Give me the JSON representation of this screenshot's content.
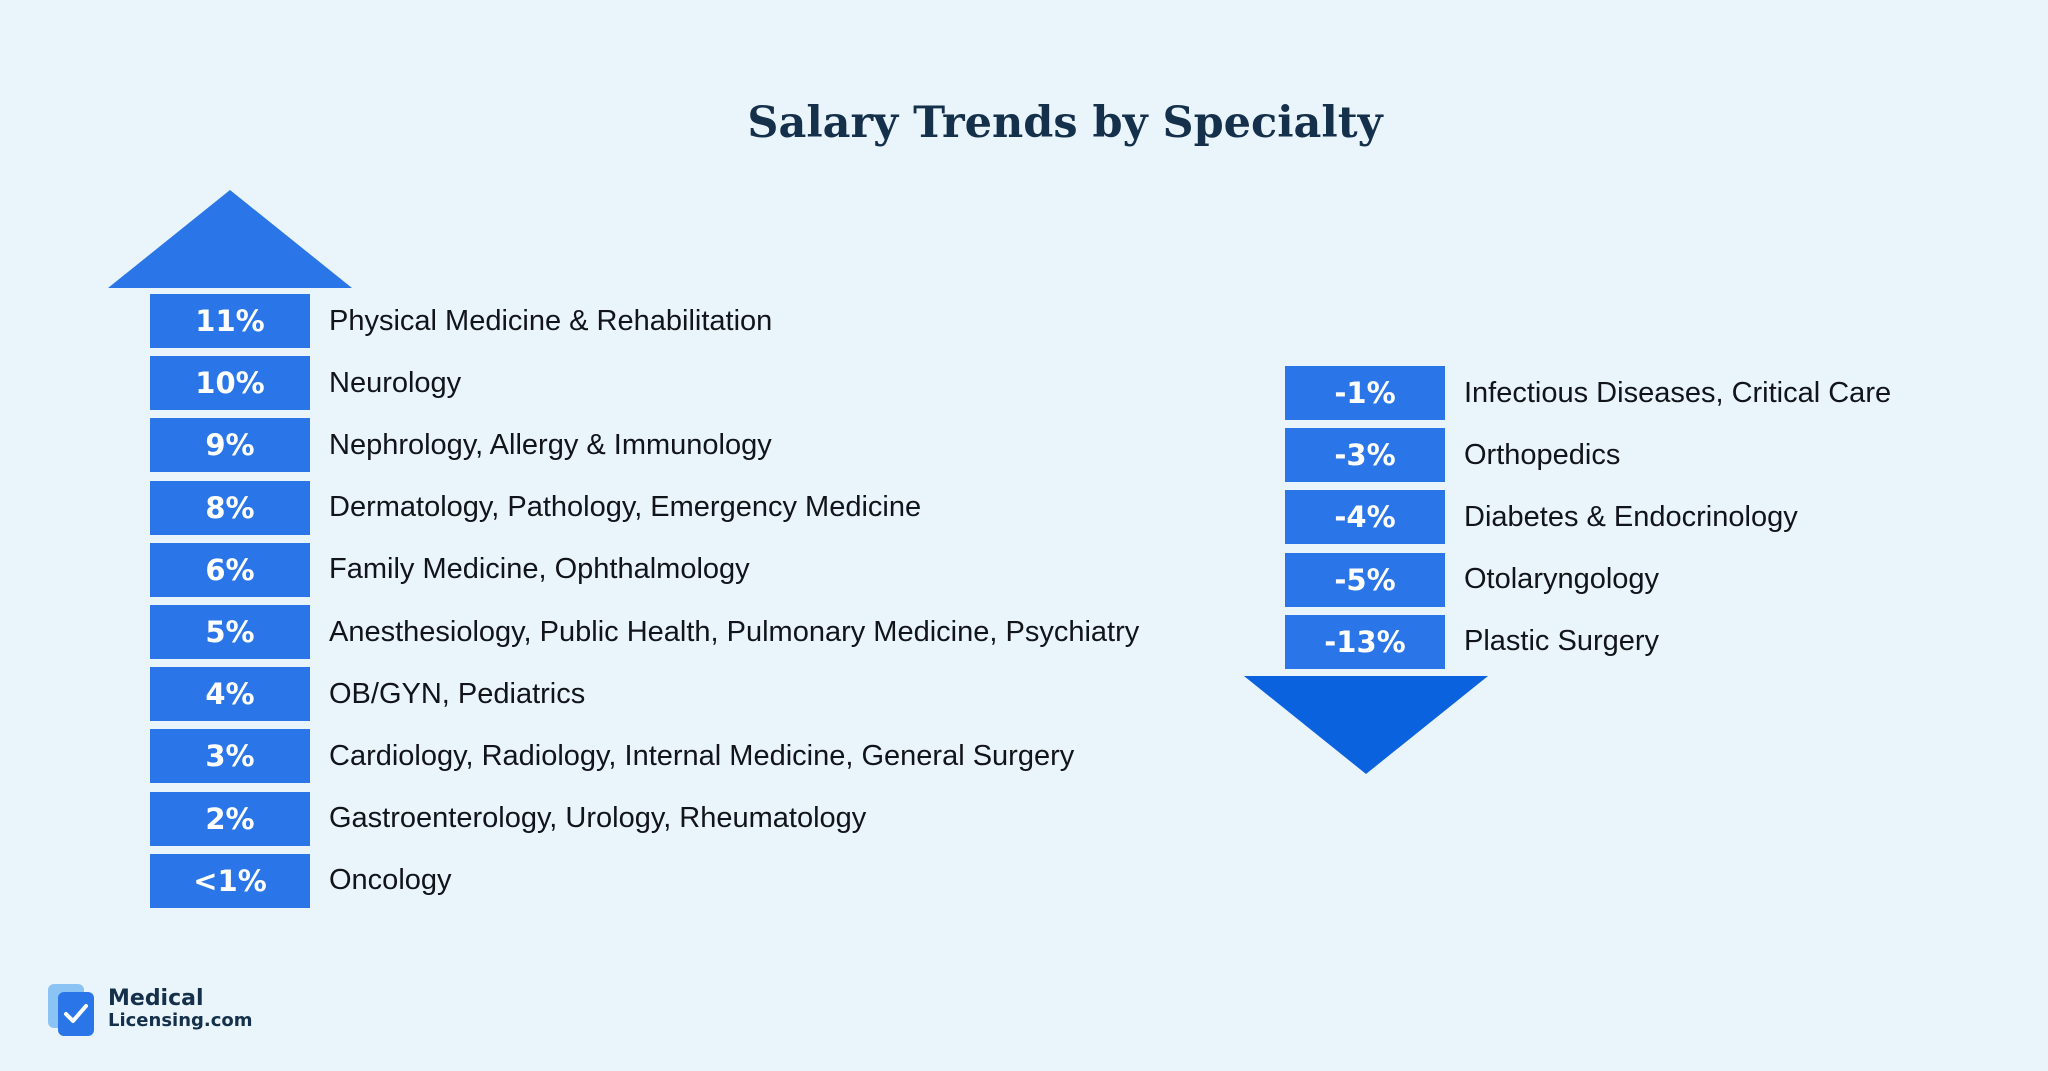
{
  "title": "Salary Trends by Specialty",
  "colors": {
    "background": "#e9f4fb",
    "badge": "#2a76e8",
    "up_arrow": "#2a76e8",
    "down_arrow": "#0b62df",
    "title": "#14304a"
  },
  "chart_data": {
    "type": "table",
    "title": "Salary Trends by Specialty",
    "increases": [
      {
        "value": "11%",
        "specialties": "Physical Medicine & Rehabilitation"
      },
      {
        "value": "10%",
        "specialties": "Neurology"
      },
      {
        "value": "9%",
        "specialties": "Nephrology, Allergy & Immunology"
      },
      {
        "value": "8%",
        "specialties": "Dermatology, Pathology, Emergency Medicine"
      },
      {
        "value": "6%",
        "specialties": "Family Medicine, Ophthalmology"
      },
      {
        "value": "5%",
        "specialties": "Anesthesiology, Public Health, Pulmonary Medicine, Psychiatry"
      },
      {
        "value": "4%",
        "specialties": "OB/GYN, Pediatrics"
      },
      {
        "value": "3%",
        "specialties": "Cardiology, Radiology, Internal Medicine, General Surgery"
      },
      {
        "value": "2%",
        "specialties": "Gastroenterology, Urology, Rheumatology"
      },
      {
        "value": "<1%",
        "specialties": "Oncology"
      }
    ],
    "decreases": [
      {
        "value": "-1%",
        "specialties": "Infectious Diseases, Critical Care"
      },
      {
        "value": "-3%",
        "specialties": "Orthopedics"
      },
      {
        "value": "-4%",
        "specialties": "Diabetes & Endocrinology"
      },
      {
        "value": "-5%",
        "specialties": "Otolaryngology"
      },
      {
        "value": "-13%",
        "specialties": "Plastic Surgery"
      }
    ]
  },
  "logo": {
    "line1": "Medical",
    "line2": "Licensing.com",
    "icon": "checkmark-document-icon"
  }
}
